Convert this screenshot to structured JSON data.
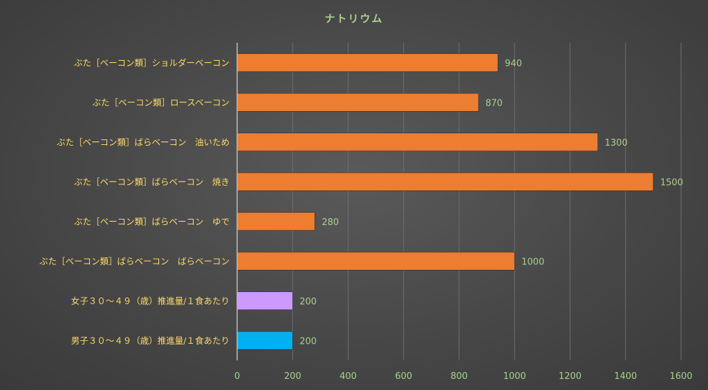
{
  "chart_data": {
    "type": "bar",
    "orientation": "horizontal",
    "title": "ナトリウム",
    "categories": [
      "ぶた［ベーコン類］ショルダーベーコン",
      "ぶた［ベーコン類］ロースベーコン",
      "ぶた［ベーコン類］ばらベーコン　油いため",
      "ぶた［ベーコン類］ばらベーコン　焼き",
      "ぶた［ベーコン類］ばらベーコン　ゆで",
      "ぶた［ベーコン類］ばらベーコン　ばらベーコン",
      "女子３０～４９（歳）推進量/１食あたり",
      "男子３０～４９（歳）推進量/１食あたり"
    ],
    "values": [
      940,
      870,
      1300,
      1500,
      280,
      1000,
      200,
      200
    ],
    "bar_colors": [
      "#ed7d31",
      "#ed7d31",
      "#ed7d31",
      "#ed7d31",
      "#ed7d31",
      "#ed7d31",
      "#cc99ff",
      "#00b0f0"
    ],
    "xlim": [
      0,
      1600
    ],
    "x_ticks": [
      "0",
      "200",
      "400",
      "600",
      "800",
      "1000",
      "1200",
      "1400",
      "1600"
    ],
    "grid": true,
    "legend": "none"
  }
}
